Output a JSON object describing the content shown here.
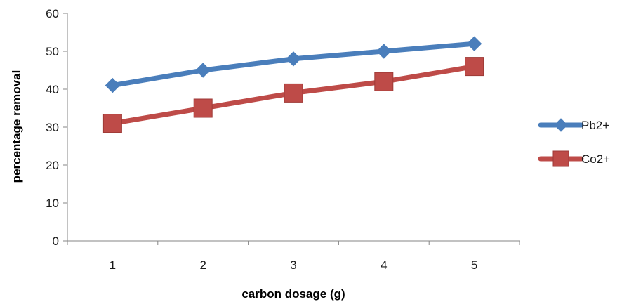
{
  "chart_data": {
    "type": "line",
    "title": "",
    "xlabel": "carbon dosage (g)",
    "ylabel": "percentage removal",
    "categories": [
      "1",
      "2",
      "3",
      "4",
      "5"
    ],
    "ylim": [
      0,
      60
    ],
    "yticks": [
      0,
      10,
      20,
      30,
      40,
      50,
      60
    ],
    "grid": false,
    "legend_position": "right",
    "series": [
      {
        "name": "Pb2+",
        "values": [
          41,
          45,
          48,
          50,
          52
        ],
        "color": "#4a7ebb",
        "marker": "diamond"
      },
      {
        "name": "Co2+",
        "values": [
          31,
          35,
          39,
          42,
          46
        ],
        "color": "#be4b48",
        "marker": "square"
      }
    ]
  }
}
